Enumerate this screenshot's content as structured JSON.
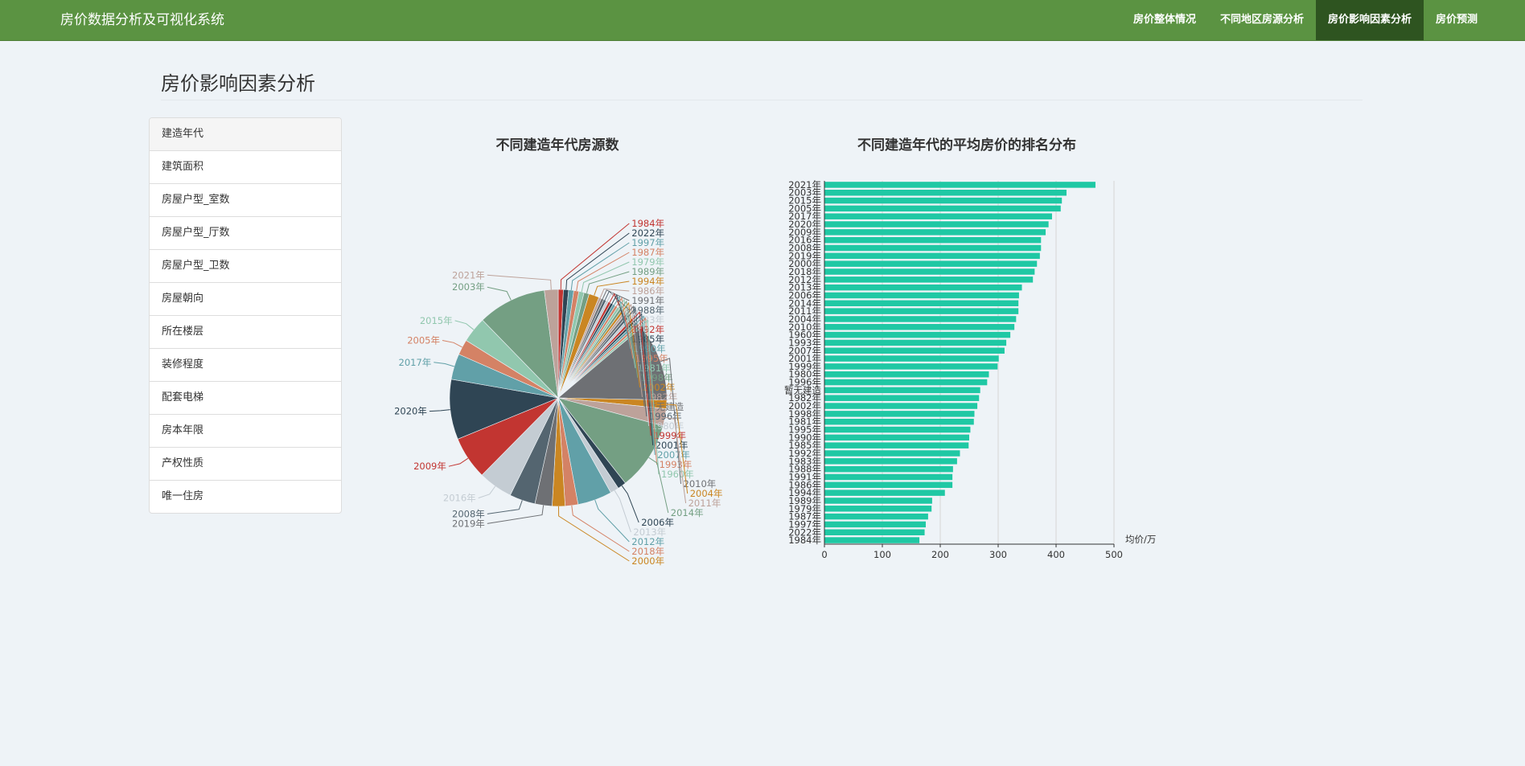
{
  "header": {
    "brand": "房价数据分析及可视化系统",
    "nav": [
      "房价整体情况",
      "不同地区房源分析",
      "房价影响因素分析",
      "房价预测"
    ],
    "active_nav": 2
  },
  "page": {
    "title": "房价影响因素分析"
  },
  "sidebar": {
    "items": [
      "建造年代",
      "建筑面积",
      "房屋户型_室数",
      "房屋户型_厅数",
      "房屋户型_卫数",
      "房屋朝向",
      "所在楼层",
      "装修程度",
      "配套电梯",
      "房本年限",
      "产权性质",
      "唯一住房"
    ],
    "active": 0
  },
  "chart_data": [
    {
      "type": "pie",
      "title": "不同建造年代房源数",
      "slices": [
        {
          "label": "1984年",
          "value": 0.6,
          "color": "#c23531"
        },
        {
          "label": "2022年",
          "value": 0.6,
          "color": "#2f4554"
        },
        {
          "label": "1997年",
          "value": 0.6,
          "color": "#61a0a8"
        },
        {
          "label": "1987年",
          "value": 0.6,
          "color": "#d48265"
        },
        {
          "label": "1979年",
          "value": 0.6,
          "color": "#91c7ae"
        },
        {
          "label": "1989年",
          "value": 0.6,
          "color": "#749f83"
        },
        {
          "label": "1994年",
          "value": 1.2,
          "color": "#ca8622"
        },
        {
          "label": "1986年",
          "value": 0.3,
          "color": "#bda29a"
        },
        {
          "label": "1991年",
          "value": 0.3,
          "color": "#6e7074"
        },
        {
          "label": "1988年",
          "value": 0.3,
          "color": "#546570"
        },
        {
          "label": "1983年",
          "value": 0.3,
          "color": "#c4ccd3"
        },
        {
          "label": "1992年",
          "value": 0.3,
          "color": "#c23531"
        },
        {
          "label": "1985年",
          "value": 0.3,
          "color": "#2f4554"
        },
        {
          "label": "1990年",
          "value": 0.3,
          "color": "#61a0a8"
        },
        {
          "label": "1995年",
          "value": 0.3,
          "color": "#d48265"
        },
        {
          "label": "1981年",
          "value": 0.3,
          "color": "#91c7ae"
        },
        {
          "label": "1998年",
          "value": 0.3,
          "color": "#749f83"
        },
        {
          "label": "2002年",
          "value": 0.3,
          "color": "#ca8622"
        },
        {
          "label": "1982年",
          "value": 0.3,
          "color": "#bda29a"
        },
        {
          "label": "暂无建造",
          "value": 0.3,
          "color": "#6e7074"
        },
        {
          "label": "1996年",
          "value": 0.3,
          "color": "#546570"
        },
        {
          "label": "1980年",
          "value": 0.3,
          "color": "#c4ccd3"
        },
        {
          "label": "1999年",
          "value": 0.3,
          "color": "#c23531"
        },
        {
          "label": "2001年",
          "value": 0.3,
          "color": "#2f4554"
        },
        {
          "label": "2007年",
          "value": 0.3,
          "color": "#61a0a8"
        },
        {
          "label": "1993年",
          "value": 0.3,
          "color": "#d48265"
        },
        {
          "label": "1960年",
          "value": 0.3,
          "color": "#91c7ae"
        },
        {
          "label": "2010年",
          "value": 9,
          "color": "#6e7074"
        },
        {
          "label": "2004年",
          "value": 1,
          "color": "#ca8622"
        },
        {
          "label": "2011年",
          "value": 2,
          "color": "#bda29a"
        },
        {
          "label": "2014年",
          "value": 8,
          "color": "#749f83"
        },
        {
          "label": "2006年",
          "value": 1,
          "color": "#2f4554"
        },
        {
          "label": "2013年",
          "value": 1,
          "color": "#c4ccd3"
        },
        {
          "label": "2012年",
          "value": 4,
          "color": "#61a0a8"
        },
        {
          "label": "2018年",
          "value": 1.5,
          "color": "#d48265"
        },
        {
          "label": "2000年",
          "value": 1.5,
          "color": "#ca8622"
        },
        {
          "label": "2019年",
          "value": 2,
          "color": "#6e7074"
        },
        {
          "label": "2008年",
          "value": 3,
          "color": "#546570"
        },
        {
          "label": "2016年",
          "value": 4,
          "color": "#c4ccd3"
        },
        {
          "label": "2009年",
          "value": 5,
          "color": "#c23531"
        },
        {
          "label": "2020年",
          "value": 7,
          "color": "#2f4554"
        },
        {
          "label": "2017年",
          "value": 3,
          "color": "#61a0a8"
        },
        {
          "label": "2005年",
          "value": 1.8,
          "color": "#d48265"
        },
        {
          "label": "2015年",
          "value": 3,
          "color": "#91c7ae"
        },
        {
          "label": "2003年",
          "value": 8,
          "color": "#749f83"
        },
        {
          "label": "2021年",
          "value": 1.6,
          "color": "#bda29a"
        }
      ]
    },
    {
      "type": "bar",
      "orientation": "horizontal",
      "title": "不同建造年代的平均房价的排名分布",
      "categories": [
        "2021年",
        "2003年",
        "2015年",
        "2005年",
        "2017年",
        "2020年",
        "2009年",
        "2016年",
        "2008年",
        "2019年",
        "2000年",
        "2018年",
        "2012年",
        "2013年",
        "2006年",
        "2014年",
        "2011年",
        "2004年",
        "2010年",
        "1960年",
        "1993年",
        "2007年",
        "2001年",
        "1999年",
        "1980年",
        "1996年",
        "暂无建造",
        "1982年",
        "2002年",
        "1998年",
        "1981年",
        "1995年",
        "1990年",
        "1985年",
        "1992年",
        "1983年",
        "1988年",
        "1991年",
        "1986年",
        "1994年",
        "1989年",
        "1979年",
        "1987年",
        "1997年",
        "2022年",
        "1984年"
      ],
      "values": [
        468,
        418,
        410,
        408,
        393,
        387,
        382,
        374,
        374,
        372,
        367,
        363,
        360,
        341,
        336,
        335,
        335,
        331,
        328,
        321,
        314,
        311,
        301,
        299,
        284,
        281,
        269,
        267,
        264,
        259,
        258,
        252,
        250,
        249,
        234,
        229,
        222,
        221,
        221,
        208,
        186,
        185,
        179,
        175,
        173,
        164
      ],
      "xlim": [
        0,
        500
      ],
      "xticks": [
        0,
        100,
        200,
        300,
        400,
        500
      ],
      "xlabel": "均价/万",
      "bar_color": "#1fc8a4"
    }
  ]
}
